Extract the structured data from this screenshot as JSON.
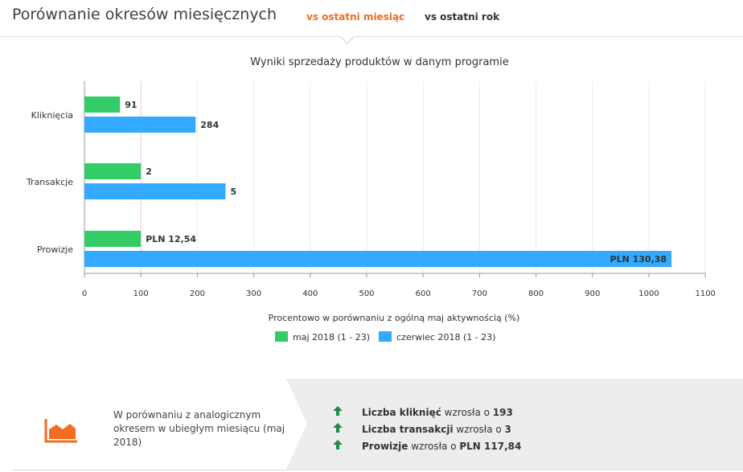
{
  "header": {
    "title": "Porównanie okresów miesięcznych",
    "tabs": [
      {
        "label": "vs ostatni miesiąc",
        "active": true
      },
      {
        "label": "vs ostatni rok",
        "active": false
      }
    ]
  },
  "colors": {
    "accent": "#f26c21",
    "series_prev": "#33cc66",
    "series_curr": "#33aaff",
    "up_arrow": "#1e8a4c"
  },
  "chart_data": {
    "type": "bar",
    "orientation": "horizontal",
    "title": "Wyniki sprzedaży produktów w danym programie",
    "xlabel": "Procentowo w porównaniu z ogólną maj aktywnością (%)",
    "xlim": [
      0,
      1100
    ],
    "xticks": [
      0,
      100,
      200,
      300,
      400,
      500,
      600,
      700,
      800,
      900,
      1000,
      1100
    ],
    "grid": true,
    "legend_position": "bottom",
    "categories": [
      "Kliknięcia",
      "Transakcje",
      "Prowizje"
    ],
    "series": [
      {
        "name": "maj 2018 (1 - 23)",
        "values": [
          63,
          100,
          100
        ],
        "labels": [
          "91",
          "2",
          "PLN 12,54"
        ]
      },
      {
        "name": "czerwiec 2018 (1 - 23)",
        "values": [
          197,
          250,
          1040
        ],
        "labels": [
          "284",
          "5",
          "PLN 130,38"
        ]
      }
    ]
  },
  "summary": {
    "text": "W porównaniu z analogicznym okresem w ubiegłym miesiącu (maj 2018)",
    "icon": "area-chart-icon",
    "stats": [
      {
        "icon": "arrow-up-icon",
        "label": "Liczba kliknięć",
        "text": "wzrosła o",
        "value": "193"
      },
      {
        "icon": "arrow-up-icon",
        "label": "Liczba transakcji",
        "text": "wzrosła o",
        "value": "3"
      },
      {
        "icon": "arrow-up-icon",
        "label": "Prowizje",
        "text": "wzrosła o",
        "value": "PLN 117,84"
      }
    ]
  }
}
